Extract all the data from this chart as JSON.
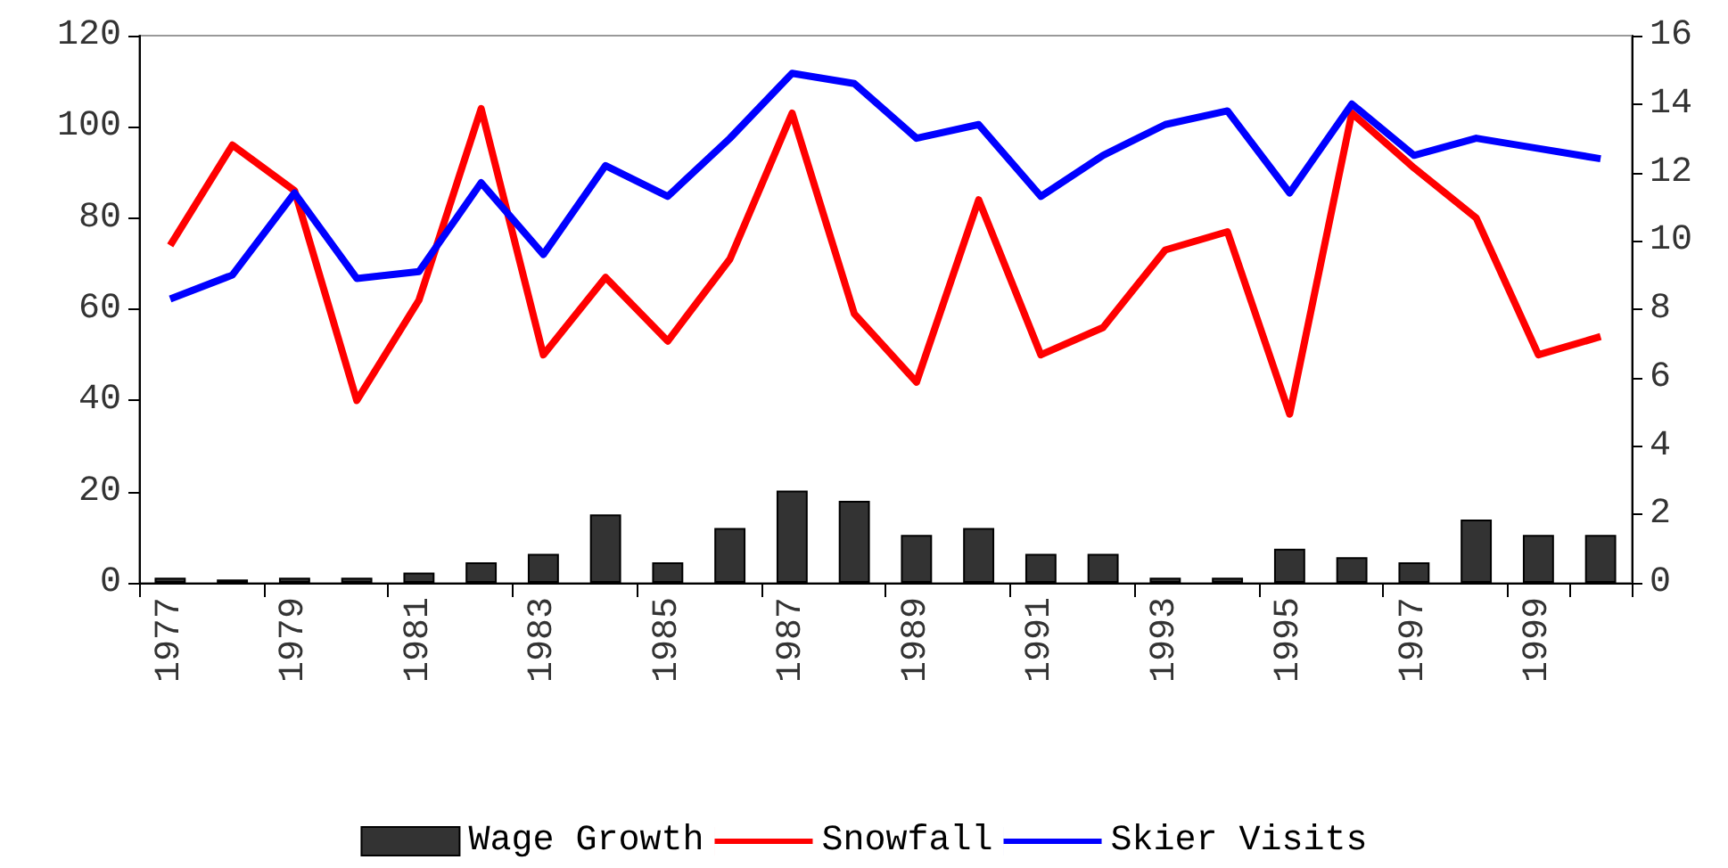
{
  "chart_data": {
    "type": "line",
    "categories": [
      "1977",
      null,
      "1979",
      null,
      "1981",
      null,
      "1983",
      null,
      "1985",
      null,
      "1987",
      null,
      "1989",
      null,
      "1991",
      null,
      "1993",
      null,
      "1995",
      null,
      "1997",
      null,
      "1999",
      null
    ],
    "series": [
      {
        "name": "Wage Growth",
        "type": "bar",
        "axis": "y2",
        "color": "#333333",
        "values": [
          0.15,
          0.1,
          0.15,
          0.15,
          0.3,
          0.6,
          0.85,
          2.0,
          0.6,
          1.6,
          2.7,
          2.4,
          1.4,
          1.6,
          0.85,
          0.85,
          0.15,
          0.15,
          1.0,
          0.75,
          0.6,
          1.85,
          1.4,
          1.4
        ]
      },
      {
        "name": "Snowfall",
        "color": "#ff0000",
        "values": [
          74,
          96,
          86,
          40,
          62,
          104,
          50,
          67,
          53,
          71,
          103,
          59,
          44,
          84,
          50,
          56,
          73,
          77,
          37,
          103,
          91,
          80,
          50,
          54
        ]
      },
      {
        "name": "Skier Visits",
        "axis": "y2",
        "color": "#0000ff",
        "values": [
          8.3,
          9.0,
          11.4,
          8.9,
          9.1,
          11.7,
          9.6,
          12.2,
          11.3,
          13.0,
          14.9,
          14.6,
          13.0,
          13.4,
          11.3,
          12.5,
          13.4,
          13.8,
          11.4,
          14.0,
          12.5,
          13.0,
          12.7,
          12.4
        ]
      }
    ],
    "ylim": [
      0,
      120
    ],
    "yticks": [
      0,
      20,
      40,
      60,
      80,
      100,
      120
    ],
    "y2lim": [
      0,
      16
    ],
    "y2ticks": [
      0,
      2,
      4,
      6,
      8,
      10,
      12,
      14,
      16
    ],
    "legend": "bottom",
    "grid": false,
    "marker": "none"
  }
}
